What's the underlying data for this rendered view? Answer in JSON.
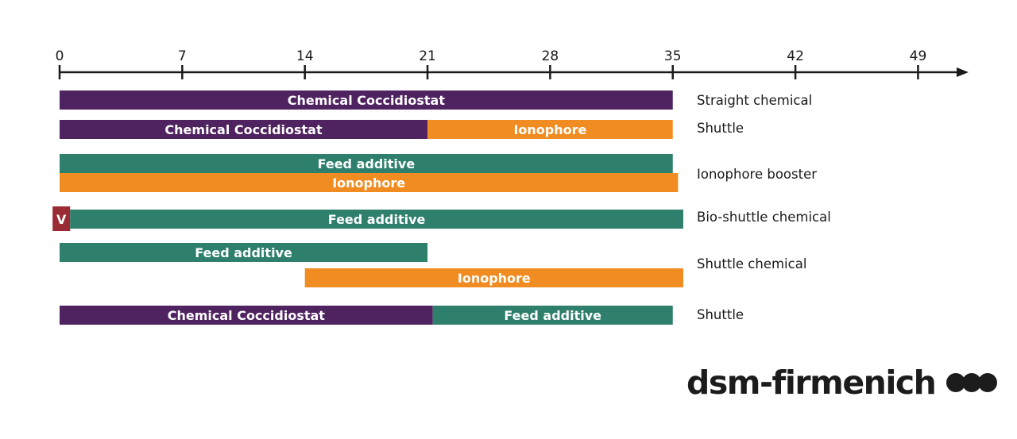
{
  "chart_data": {
    "type": "bar",
    "subtype": "timeline-gantt",
    "axis": {
      "min": 0,
      "max": 49,
      "ticks": [
        0,
        7,
        14,
        21,
        28,
        35,
        42,
        49
      ],
      "tick_labels": [
        "0",
        "7",
        "14",
        "21",
        "28",
        "35",
        "42",
        "49"
      ],
      "arrow": true
    },
    "rows": [
      {
        "label": "Straight chemical",
        "bars": [
          {
            "name": "Chemical Coccidiostat",
            "start": 0,
            "end": 35,
            "color": "#4f2260",
            "lane": 0
          }
        ]
      },
      {
        "label": "Shuttle",
        "bars": [
          {
            "name": "Chemical Coccidiostat",
            "start": 0,
            "end": 21,
            "color": "#4f2260",
            "lane": 0
          },
          {
            "name": "Ionophore",
            "start": 21,
            "end": 35,
            "color": "#f08c21",
            "lane": 0
          }
        ]
      },
      {
        "label": "Ionophore booster",
        "bars": [
          {
            "name": "Feed additive",
            "start": 0,
            "end": 35,
            "color": "#2e7f6c",
            "lane": 0
          },
          {
            "name": "Ionophore",
            "start": 0,
            "end": 35.3,
            "color": "#f08c21",
            "lane": 1
          }
        ]
      },
      {
        "label": "Bio-shuttle chemical",
        "bars": [
          {
            "name": "V",
            "start": -0.4,
            "end": 0.6,
            "color": "#9a2a33",
            "lane": 0,
            "short": true
          },
          {
            "name": "Feed additive",
            "start": 0.6,
            "end": 35.6,
            "color": "#2e7f6c",
            "lane": 0
          }
        ]
      },
      {
        "label": "Shuttle chemical",
        "bars": [
          {
            "name": "Feed additive",
            "start": 0,
            "end": 21,
            "color": "#2e7f6c",
            "lane": 0
          },
          {
            "name": "Ionophore",
            "start": 14,
            "end": 35.6,
            "color": "#f08c21",
            "lane": 2
          }
        ]
      },
      {
        "label": "Shuttle",
        "bars": [
          {
            "name": "Chemical Coccidiostat",
            "start": 0,
            "end": 21.3,
            "color": "#4f2260",
            "lane": 0
          },
          {
            "name": "Feed additive",
            "start": 21.3,
            "end": 35,
            "color": "#2e7f6c",
            "lane": 0
          }
        ]
      }
    ],
    "legend": "none",
    "grid": false
  },
  "brand": {
    "name": "dsm-firmenich",
    "text_color": "#1c1c1c"
  },
  "colors": {
    "axis": "#1a1a1a",
    "bar_text": "#ffffff"
  }
}
